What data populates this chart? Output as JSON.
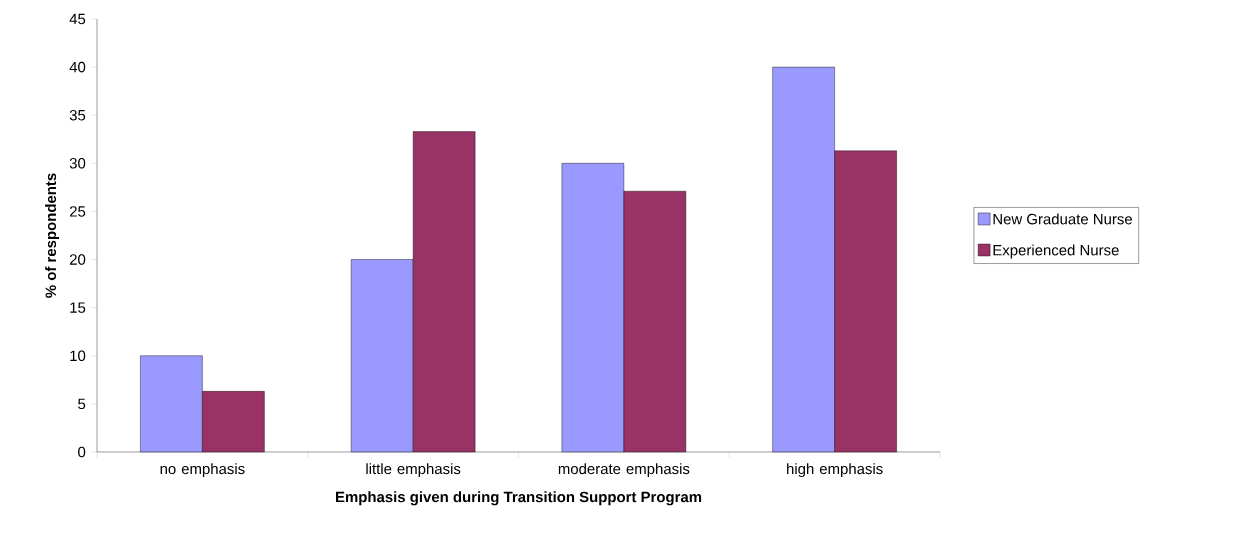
{
  "chart_data": {
    "type": "bar",
    "xlabel": "Emphasis given during Transition Support Program",
    "ylabel": "% of respondents",
    "categories": [
      "no emphasis",
      "little emphasis",
      "moderate emphasis",
      "high emphasis"
    ],
    "series": [
      {
        "name": "New Graduate Nurse",
        "color": "#9999ff",
        "values": [
          10,
          20,
          30,
          40
        ]
      },
      {
        "name": "Experienced Nurse",
        "color": "#993366",
        "values": [
          6.3,
          33.3,
          27.1,
          31.3
        ]
      }
    ],
    "ylim": [
      0,
      45
    ],
    "yticks": [
      0,
      5,
      10,
      15,
      20,
      25,
      30,
      35,
      40,
      45
    ],
    "grid": false,
    "legend": "right"
  }
}
